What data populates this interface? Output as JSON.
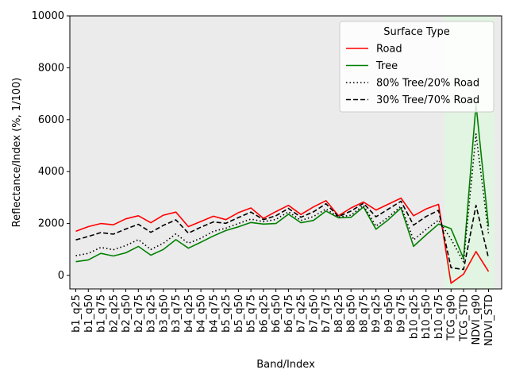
{
  "chart_data": {
    "type": "line",
    "title": "",
    "xlabel": "Band/Index",
    "ylabel": "Reflectance/Index (%, 1/100)",
    "ylim": [
      -520,
      10000
    ],
    "yticks": [
      0,
      2000,
      4000,
      6000,
      8000,
      10000
    ],
    "grid": false,
    "legend_position": "top-right",
    "legend_title": "Surface Type",
    "plot_background": "#ebebeb",
    "highlight_color": "#dff7df",
    "categories": [
      "b1_q25",
      "b1_q50",
      "b1_q75",
      "b2_q25",
      "b2_q50",
      "b2_q75",
      "b3_q25",
      "b3_q50",
      "b3_q75",
      "b4_q25",
      "b4_q50",
      "b4_q75",
      "b5_q25",
      "b5_q50",
      "b5_q75",
      "b6_q25",
      "b6_q50",
      "b6_q75",
      "b7_q25",
      "b7_q50",
      "b7_q75",
      "b8_q25",
      "b8_q50",
      "b8_q75",
      "b9_q25",
      "b9_q50",
      "b9_q75",
      "b10_q25",
      "b10_q50",
      "b10_q75",
      "TCG_q90",
      "TCG_STD",
      "NDVI_q90",
      "NDVI_STD"
    ],
    "highlight_ranges": [
      {
        "from": "TCG_q90",
        "to": "TCG_STD"
      },
      {
        "from": "NDVI_q90",
        "to": "NDVI_STD"
      }
    ],
    "series": [
      {
        "name": "Road",
        "color": "#ff0000",
        "style": "solid",
        "values": [
          1700,
          1880,
          2000,
          1950,
          2180,
          2300,
          2030,
          2320,
          2440,
          1880,
          2080,
          2280,
          2150,
          2420,
          2600,
          2200,
          2460,
          2700,
          2350,
          2640,
          2880,
          2300,
          2600,
          2830,
          2520,
          2750,
          2980,
          2300,
          2560,
          2740,
          -300,
          50,
          920,
          150
        ]
      },
      {
        "name": "Tree",
        "color": "#008000",
        "style": "solid",
        "values": [
          530,
          600,
          850,
          750,
          870,
          1120,
          780,
          1000,
          1380,
          1050,
          1280,
          1520,
          1730,
          1870,
          2040,
          1980,
          2000,
          2360,
          2030,
          2120,
          2480,
          2220,
          2240,
          2640,
          1780,
          2150,
          2600,
          1120,
          1560,
          1980,
          1800,
          650,
          6600,
          1880
        ]
      },
      {
        "name": "80% Tree/20% Road",
        "color": "#000000",
        "style": "dotted",
        "values": [
          760,
          850,
          1080,
          990,
          1150,
          1380,
          1000,
          1240,
          1600,
          1240,
          1430,
          1700,
          1820,
          2000,
          2170,
          2070,
          2160,
          2450,
          2120,
          2270,
          2560,
          2250,
          2320,
          2700,
          1900,
          2250,
          2670,
          1370,
          1770,
          2130,
          1400,
          520,
          5450,
          1600
        ]
      },
      {
        "name": "30% Tree/70% Road",
        "color": "#000000",
        "style": "dashed",
        "values": [
          1370,
          1500,
          1650,
          1590,
          1790,
          1970,
          1660,
          1930,
          2140,
          1630,
          1860,
          2060,
          2010,
          2230,
          2440,
          2150,
          2300,
          2580,
          2240,
          2450,
          2760,
          2270,
          2480,
          2780,
          2260,
          2560,
          2860,
          1940,
          2270,
          2510,
          300,
          230,
          2700,
          660
        ]
      }
    ]
  }
}
